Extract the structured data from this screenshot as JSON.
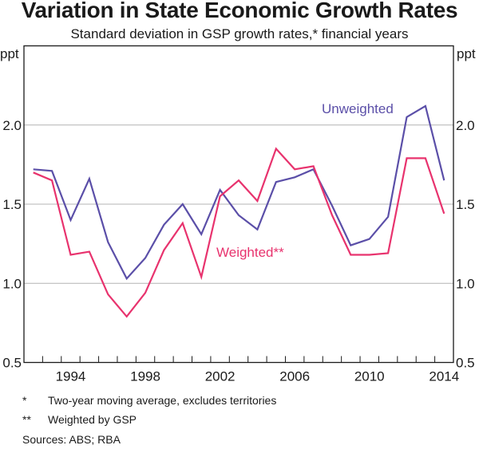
{
  "chart_data": {
    "type": "line",
    "title": "Variation in State Economic Growth Rates",
    "subtitle": "Standard deviation in GSP growth rates,* financial years",
    "ylabel_left": "ppt",
    "ylabel_right": "ppt",
    "ylim": [
      0.5,
      2.5
    ],
    "yticks": [
      0.5,
      1.0,
      1.5,
      2.0
    ],
    "ytick_labels": [
      "0.5",
      "1.0",
      "1.5",
      "2.0"
    ],
    "xlim": [
      1991.5,
      2014.5
    ],
    "xtick_labels": [
      "1994",
      "1998",
      "2002",
      "2006",
      "2010",
      "2014"
    ],
    "xtick_label_years": [
      1994,
      1998,
      2002,
      2006,
      2010,
      2014
    ],
    "grid": true,
    "x": [
      1992,
      1993,
      1994,
      1995,
      1996,
      1997,
      1998,
      1999,
      2000,
      2001,
      2002,
      2003,
      2004,
      2005,
      2006,
      2007,
      2008,
      2009,
      2010,
      2011,
      2012,
      2013,
      2014
    ],
    "series": [
      {
        "name": "Unweighted",
        "color": "#5b4fa8",
        "values": [
          1.72,
          1.71,
          1.4,
          1.66,
          1.26,
          1.03,
          1.16,
          1.37,
          1.5,
          1.31,
          1.59,
          1.43,
          1.34,
          1.64,
          1.67,
          1.72,
          1.49,
          1.24,
          1.28,
          1.42,
          2.05,
          2.12,
          1.65
        ]
      },
      {
        "name": "Weighted**",
        "color": "#e8336e",
        "values": [
          1.7,
          1.65,
          1.18,
          1.2,
          0.93,
          0.79,
          0.94,
          1.21,
          1.38,
          1.04,
          1.55,
          1.65,
          1.52,
          1.85,
          1.72,
          1.74,
          1.43,
          1.18,
          1.18,
          1.19,
          1.79,
          1.79,
          1.44
        ]
      }
    ],
    "annotations": [
      "Unweighted",
      "Weighted**"
    ]
  },
  "footnotes": [
    {
      "mark": "*",
      "text": "Two-year moving average, excludes territories"
    },
    {
      "mark": "**",
      "text": "Weighted by GSP"
    }
  ],
  "sources": "Sources:  ABS; RBA"
}
